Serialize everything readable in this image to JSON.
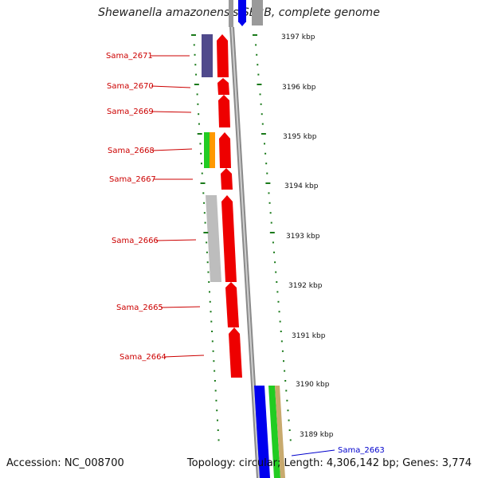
{
  "title": "Shewanella amazonensis SB2B, complete genome",
  "accession": "Accession: NC_008700",
  "topology": "Topology: circular; Length: 4,306,142 bp; Genes: 3,774",
  "colors": {
    "gene_red": "#ee0000",
    "backbone": "#888888",
    "tick": "#1a7a1a",
    "purple": "#504a8c",
    "gray": "#bdbdbd",
    "blue": "#0000ee",
    "green": "#22cc22",
    "orange": "#ff9900",
    "tan": "#c8aa6e",
    "label_red": "#cc0000",
    "label_blue": "#0000cc"
  },
  "genes": [
    {
      "name": "Sama_2671"
    },
    {
      "name": "Sama_2670"
    },
    {
      "name": "Sama_2669"
    },
    {
      "name": "Sama_2668"
    },
    {
      "name": "Sama_2667"
    },
    {
      "name": "Sama_2666"
    },
    {
      "name": "Sama_2665"
    },
    {
      "name": "Sama_2664"
    }
  ],
  "outer_gene": {
    "name": "Sama_2663"
  },
  "kbp_labels": [
    "3197 kbp",
    "3196 kbp",
    "3195 kbp",
    "3194 kbp",
    "3193 kbp",
    "3192 kbp",
    "3191 kbp",
    "3190 kbp",
    "3189 kbp"
  ]
}
